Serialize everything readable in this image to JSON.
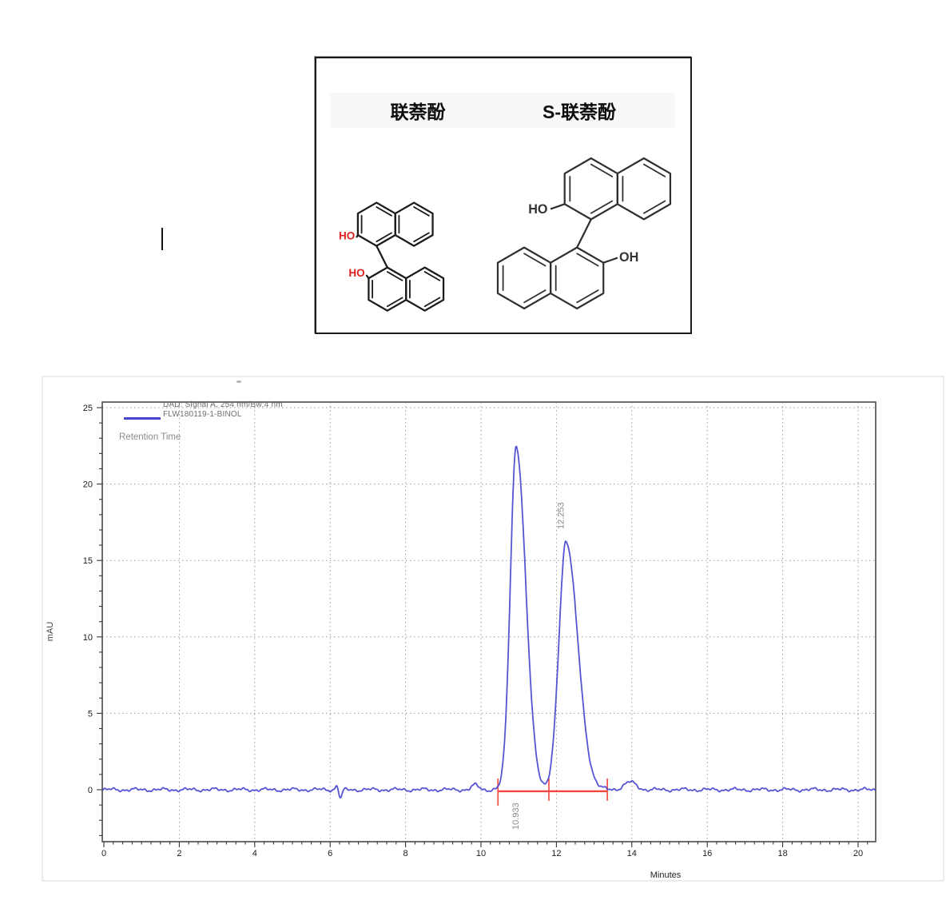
{
  "structures": {
    "left_title": "联萘酚",
    "right_title": "S-联萘酚",
    "left_oh_top": "HO",
    "left_oh_bottom": "HO",
    "right_oh_top": "HO",
    "right_oh_bottom": "OH",
    "oh_accent_color": "#e02020",
    "bond_color": "#1a1a1a",
    "right_bond_color": "#2e2e2e"
  },
  "chart_data": {
    "type": "line",
    "title": "",
    "legend": {
      "line1": "DAD: Signal A, 254 nm/Bw:4 nm",
      "line2": "FLW180119-1-BINOL",
      "annotation": "Retention Time",
      "position": "top-left"
    },
    "xlabel": "Minutes",
    "ylabel": "mAU",
    "xlim": [
      0,
      20.5
    ],
    "ylim": [
      -3.4,
      25.4
    ],
    "x_major_ticks": [
      0,
      2,
      4,
      6,
      8,
      10,
      12,
      14,
      16,
      18,
      20
    ],
    "y_major_ticks": [
      0,
      5,
      10,
      15,
      20,
      25
    ],
    "x_minor_step": 0.25,
    "y_minor_step": 1,
    "grid": "dotted",
    "grid_color": "#9a9a9a",
    "frame_color": "#4a4a4a",
    "series_color": "#4646d0",
    "annotation_color": "#8a8a8a",
    "peaks": [
      {
        "rt_min": 10.933,
        "label": "10.933",
        "height_mAU": 22.5,
        "sigma_lead_min": 0.155,
        "sigma_tail_min": 0.25
      },
      {
        "rt_min": 12.253,
        "label": "12.253",
        "height_mAU": 16.3,
        "sigma_lead_min": 0.185,
        "sigma_tail_min": 0.31
      }
    ],
    "minor_features": [
      {
        "t_min": 9.85,
        "height_mAU": 0.3,
        "sigma_min": 0.09
      },
      {
        "t_min": 13.95,
        "height_mAU": 0.5,
        "sigma_min": 0.16
      }
    ],
    "injection_artifact": {
      "t_min": 6.2
    },
    "integration": {
      "start_min": 10.45,
      "end_min": 13.35,
      "tick_marks_min": [
        10.45,
        11.8,
        13.35
      ],
      "level_mAU": -0.1,
      "color": "#f2453d"
    }
  }
}
